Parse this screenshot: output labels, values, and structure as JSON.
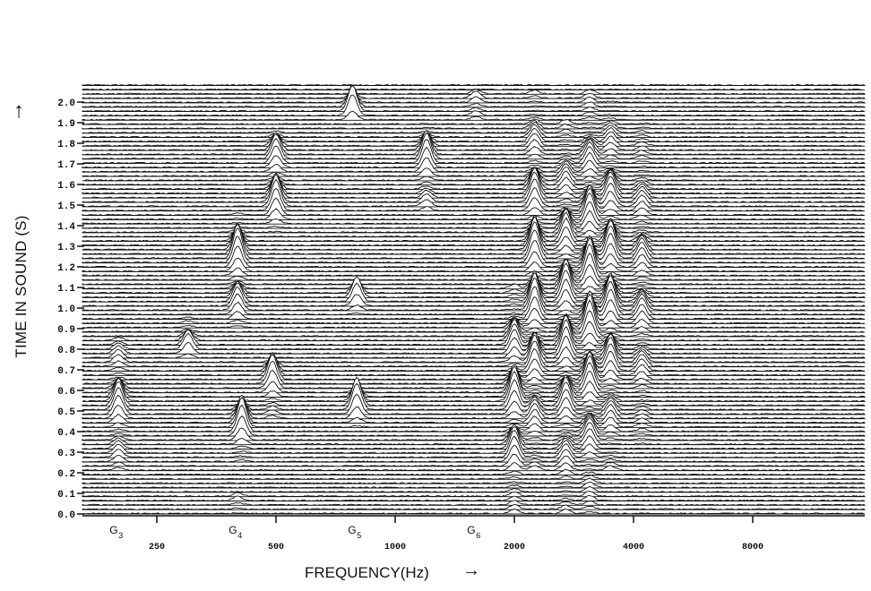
{
  "chart_data": {
    "type": "waterfall_spectrogram",
    "ylabel": "TIME IN SOUND (S)",
    "xlabel": "FREQUENCY(Hz)",
    "y_ticks": [
      "0.0",
      "0.1",
      "0.2",
      "0.3",
      "0.4",
      "0.5",
      "0.6",
      "0.7",
      "0.8",
      "0.9",
      "1.0",
      "1.1",
      "1.2",
      "1.3",
      "1.4",
      "1.5",
      "1.6",
      "1.7",
      "1.8",
      "1.9",
      "2.0"
    ],
    "x_ticks": [
      "250",
      "500",
      "1000",
      "2000",
      "4000",
      "8000"
    ],
    "note_labels": [
      {
        "note": "G",
        "octave": "3"
      },
      {
        "note": "G",
        "octave": "4"
      },
      {
        "note": "G",
        "octave": "5"
      },
      {
        "note": "G",
        "octave": "6"
      }
    ],
    "time_range_s": [
      0.0,
      2.1
    ],
    "frequency_scale": "log",
    "trace_count": 100,
    "peaks": [
      {
        "freq_hz": 200,
        "t_start": 0.2,
        "t_end": 0.85,
        "height": 0.7
      },
      {
        "freq_hz": 300,
        "t_start": 0.75,
        "t_end": 0.95,
        "height": 0.8
      },
      {
        "freq_hz": 400,
        "t_start": 0.0,
        "t_end": 0.1,
        "height": 0.6
      },
      {
        "freq_hz": 410,
        "t_start": 0.25,
        "t_end": 0.55,
        "height": 0.9
      },
      {
        "freq_hz": 400,
        "t_start": 0.9,
        "t_end": 1.45,
        "height": 1.0
      },
      {
        "freq_hz": 490,
        "t_start": 0.45,
        "t_end": 0.75,
        "height": 0.9
      },
      {
        "freq_hz": 500,
        "t_start": 1.35,
        "t_end": 1.85,
        "height": 1.0
      },
      {
        "freq_hz": 800,
        "t_start": 0.4,
        "t_end": 0.6,
        "height": 0.9
      },
      {
        "freq_hz": 800,
        "t_start": 0.95,
        "t_end": 1.1,
        "height": 0.8
      },
      {
        "freq_hz": 780,
        "t_start": 1.9,
        "t_end": 2.05,
        "height": 1.0
      },
      {
        "freq_hz": 1200,
        "t_start": 1.45,
        "t_end": 1.9,
        "height": 0.8
      },
      {
        "freq_hz": 1600,
        "t_start": 1.9,
        "t_end": 2.05,
        "height": 0.9
      },
      {
        "freq_hz": 2000,
        "t_start": 0.0,
        "t_end": 1.1,
        "height": 0.9
      },
      {
        "freq_hz": 2250,
        "t_start": 0.2,
        "t_end": 2.05,
        "height": 1.0
      },
      {
        "freq_hz": 2700,
        "t_start": 0.0,
        "t_end": 1.9,
        "height": 0.9
      },
      {
        "freq_hz": 3100,
        "t_start": 0.0,
        "t_end": 2.05,
        "height": 1.0
      },
      {
        "freq_hz": 3500,
        "t_start": 0.2,
        "t_end": 2.0,
        "height": 0.9
      },
      {
        "freq_hz": 4200,
        "t_start": 0.3,
        "t_end": 1.9,
        "height": 0.5
      }
    ]
  }
}
